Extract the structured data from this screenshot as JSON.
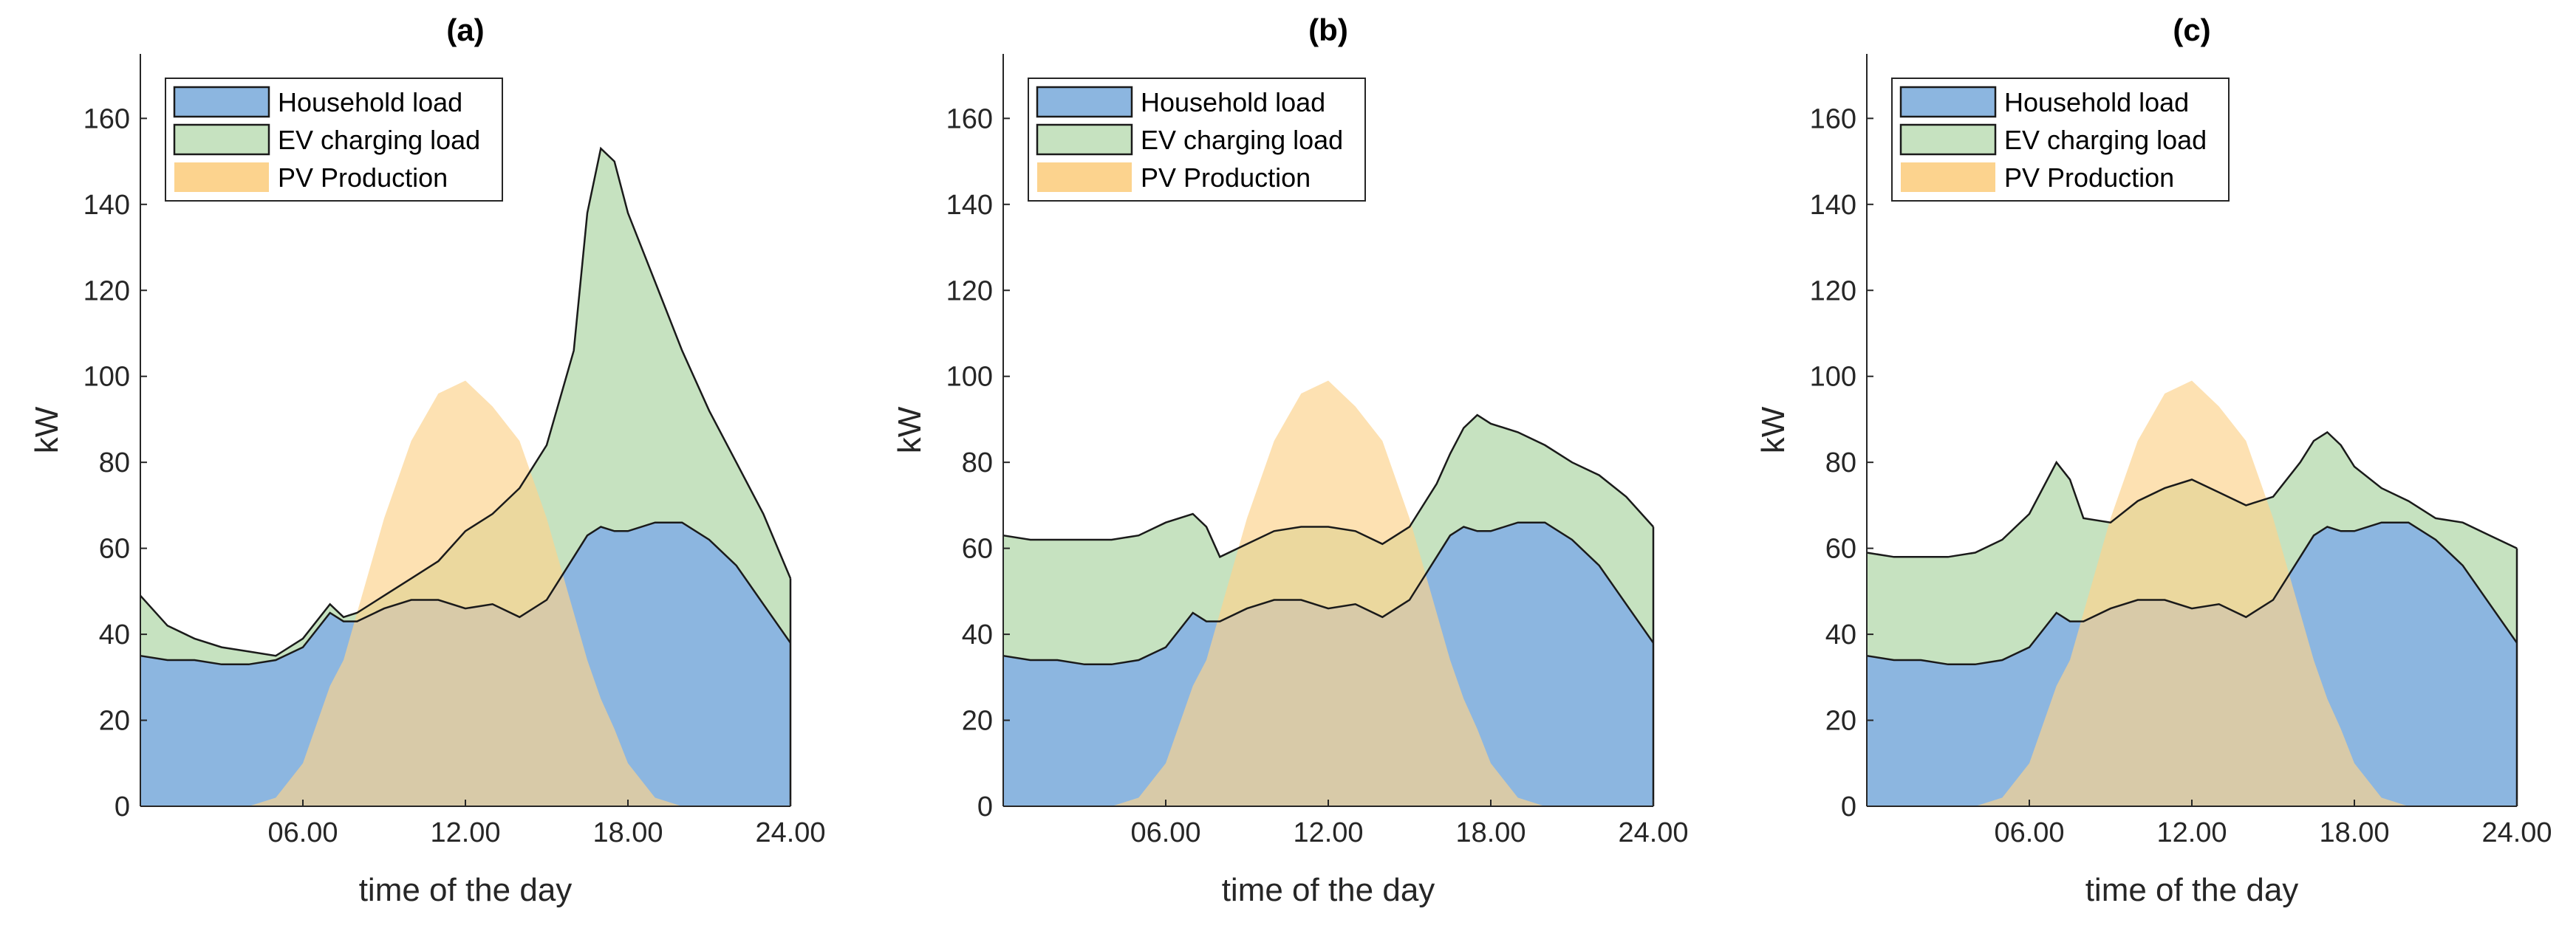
{
  "chart_data": [
    {
      "type": "area",
      "title": "(a)",
      "xlabel": "time of the day",
      "ylabel": "kW",
      "xlim": [
        0,
        24
      ],
      "ylim": [
        0,
        175
      ],
      "xticks": [
        6,
        12,
        18,
        24
      ],
      "xtick_labels": [
        "06.00",
        "12.00",
        "18.00",
        "24.00"
      ],
      "yticks": [
        0,
        20,
        40,
        60,
        80,
        100,
        120,
        140,
        160
      ],
      "legend_position": "top-left",
      "x": [
        0,
        1,
        2,
        3,
        4,
        5,
        6,
        7,
        7.5,
        8,
        9,
        10,
        11,
        12,
        13,
        14,
        15,
        16,
        16.5,
        17,
        17.5,
        18,
        19,
        20,
        21,
        22,
        23,
        24
      ],
      "series": [
        {
          "name": "Household load",
          "role": "stack-base",
          "color": "#8cb6e0",
          "values": [
            35,
            34,
            34,
            33,
            33,
            34,
            37,
            45,
            43,
            43,
            46,
            48,
            48,
            46,
            47,
            44,
            48,
            58,
            63,
            65,
            64,
            64,
            66,
            66,
            62,
            56,
            47,
            38
          ]
        },
        {
          "name": "EV charging load",
          "role": "stack-top",
          "color": "#c6e2c0",
          "values": [
            49,
            42,
            39,
            37,
            36,
            35,
            39,
            47,
            44,
            45,
            49,
            53,
            57,
            64,
            68,
            74,
            84,
            106,
            138,
            153,
            150,
            138,
            122,
            106,
            92,
            80,
            68,
            53
          ]
        },
        {
          "name": "PV Production",
          "role": "overlay",
          "color": "#fcd38e",
          "values": [
            0,
            0,
            0,
            0,
            0,
            2,
            10,
            28,
            34,
            45,
            67,
            85,
            96,
            99,
            93,
            85,
            67,
            45,
            34,
            25,
            18,
            10,
            2,
            0,
            0,
            0,
            0,
            0
          ]
        }
      ]
    },
    {
      "type": "area",
      "title": "(b)",
      "xlabel": "time of the day",
      "ylabel": "kW",
      "xlim": [
        0,
        24
      ],
      "ylim": [
        0,
        175
      ],
      "xticks": [
        6,
        12,
        18,
        24
      ],
      "xtick_labels": [
        "06.00",
        "12.00",
        "18.00",
        "24.00"
      ],
      "yticks": [
        0,
        20,
        40,
        60,
        80,
        100,
        120,
        140,
        160
      ],
      "legend_position": "top-left",
      "x": [
        0,
        1,
        2,
        3,
        4,
        5,
        6,
        7,
        7.5,
        8,
        9,
        10,
        11,
        12,
        13,
        14,
        15,
        16,
        16.5,
        17,
        17.5,
        18,
        19,
        20,
        21,
        22,
        23,
        24
      ],
      "series": [
        {
          "name": "Household load",
          "role": "stack-base",
          "color": "#8cb6e0",
          "values": [
            35,
            34,
            34,
            33,
            33,
            34,
            37,
            45,
            43,
            43,
            46,
            48,
            48,
            46,
            47,
            44,
            48,
            58,
            63,
            65,
            64,
            64,
            66,
            66,
            62,
            56,
            47,
            38
          ]
        },
        {
          "name": "EV charging load",
          "role": "stack-top",
          "color": "#c6e2c0",
          "values": [
            63,
            62,
            62,
            62,
            62,
            63,
            66,
            68,
            65,
            58,
            61,
            64,
            65,
            65,
            64,
            61,
            65,
            75,
            82,
            88,
            91,
            89,
            87,
            84,
            80,
            77,
            72,
            65
          ]
        },
        {
          "name": "PV Production",
          "role": "overlay",
          "color": "#fcd38e",
          "values": [
            0,
            0,
            0,
            0,
            0,
            2,
            10,
            28,
            34,
            45,
            67,
            85,
            96,
            99,
            93,
            85,
            67,
            45,
            34,
            25,
            18,
            10,
            2,
            0,
            0,
            0,
            0,
            0
          ]
        }
      ]
    },
    {
      "type": "area",
      "title": "(c)",
      "xlabel": "time of the day",
      "ylabel": "kW",
      "xlim": [
        0,
        24
      ],
      "ylim": [
        0,
        175
      ],
      "xticks": [
        6,
        12,
        18,
        24
      ],
      "xtick_labels": [
        "06.00",
        "12.00",
        "18.00",
        "24.00"
      ],
      "yticks": [
        0,
        20,
        40,
        60,
        80,
        100,
        120,
        140,
        160
      ],
      "legend_position": "top-left",
      "x": [
        0,
        1,
        2,
        3,
        4,
        5,
        6,
        7,
        7.5,
        8,
        9,
        10,
        11,
        12,
        13,
        14,
        15,
        16,
        16.5,
        17,
        17.5,
        18,
        19,
        20,
        21,
        22,
        23,
        24
      ],
      "series": [
        {
          "name": "Household load",
          "role": "stack-base",
          "color": "#8cb6e0",
          "values": [
            35,
            34,
            34,
            33,
            33,
            34,
            37,
            45,
            43,
            43,
            46,
            48,
            48,
            46,
            47,
            44,
            48,
            58,
            63,
            65,
            64,
            64,
            66,
            66,
            62,
            56,
            47,
            38
          ]
        },
        {
          "name": "EV charging load",
          "role": "stack-top",
          "color": "#c6e2c0",
          "values": [
            59,
            58,
            58,
            58,
            59,
            62,
            68,
            80,
            76,
            67,
            66,
            71,
            74,
            76,
            73,
            70,
            72,
            80,
            85,
            87,
            84,
            79,
            74,
            71,
            67,
            66,
            63,
            60
          ]
        },
        {
          "name": "PV Production",
          "role": "overlay",
          "color": "#fcd38e",
          "values": [
            0,
            0,
            0,
            0,
            0,
            2,
            10,
            28,
            34,
            45,
            67,
            85,
            96,
            99,
            93,
            85,
            67,
            45,
            34,
            25,
            18,
            10,
            2,
            0,
            0,
            0,
            0,
            0
          ]
        }
      ]
    }
  ]
}
